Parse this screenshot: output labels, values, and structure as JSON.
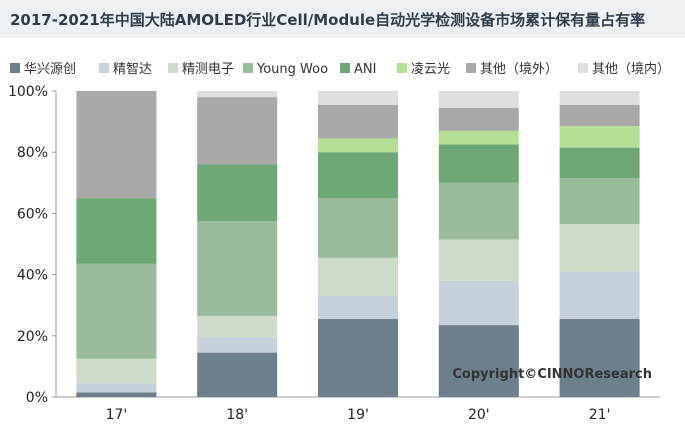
{
  "title": "2017-2021年中国大陆AMOLED行业Cell/Module自动光学检测设备市场累计保有量占有率",
  "copyright": "Copyright©CINNOResearch",
  "chart_data": {
    "type": "bar",
    "stacked": true,
    "categories": [
      "17'",
      "18'",
      "19'",
      "20'",
      "21'"
    ],
    "ylim": [
      0,
      100
    ],
    "yticks": [
      "0%",
      "20%",
      "40%",
      "60%",
      "80%",
      "100%"
    ],
    "legend_position": "top",
    "grid": false,
    "series": [
      {
        "name": "华兴源创",
        "color": "#6b7f8c",
        "values": [
          1.5,
          14.5,
          25.5,
          23.5,
          25.5
        ]
      },
      {
        "name": "精智达",
        "color": "#c5d1db",
        "values": [
          3,
          5,
          7.5,
          14.5,
          15.5
        ]
      },
      {
        "name": "精测电子",
        "color": "#ccdcc9",
        "values": [
          8,
          7,
          12.5,
          13.5,
          15.5
        ]
      },
      {
        "name": "Young Woo",
        "color": "#98bb99",
        "values": [
          31,
          31,
          19.5,
          18.5,
          15
        ]
      },
      {
        "name": "ANI",
        "color": "#6ba873",
        "values": [
          21.5,
          18.5,
          15,
          12.5,
          10
        ]
      },
      {
        "name": "凌云光",
        "color": "#b5e093",
        "values": [
          0,
          0,
          4.5,
          4.5,
          7
        ]
      },
      {
        "name": "其他（境外）",
        "color": "#a8a8a8",
        "values": [
          35,
          22,
          11,
          7.5,
          7
        ]
      },
      {
        "name": "其他（境内）",
        "color": "#dedede",
        "values": [
          0,
          2,
          4.5,
          5.5,
          4.5
        ]
      }
    ]
  }
}
